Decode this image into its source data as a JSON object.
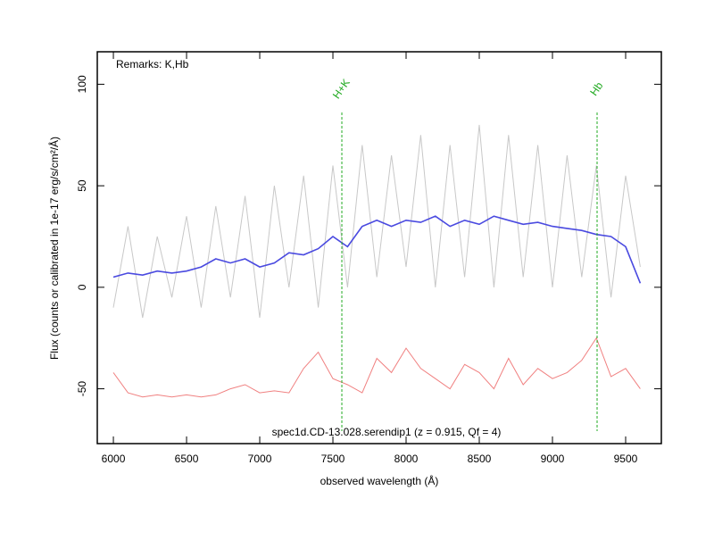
{
  "chart_data": {
    "type": "line",
    "remark": "Remarks: K,Hb",
    "caption": "spec1d.CD-13.028.serendip1 (z = 0.915, Qf = 4)",
    "x_label": "observed wavelength (Å)",
    "y_label": "Flux (counts or calibrated in 1e-17 erg/s/cm²/Å)",
    "xlim": [
      5890,
      9744
    ],
    "ylim": [
      -77,
      116
    ],
    "xticks": [
      6000,
      6500,
      7000,
      7500,
      8000,
      8500,
      9000,
      9500
    ],
    "yticks": [
      -50,
      0,
      50,
      100
    ],
    "x": [
      6000,
      6100,
      6200,
      6300,
      6400,
      6500,
      6600,
      6700,
      6800,
      6900,
      7000,
      7100,
      7200,
      7300,
      7400,
      7500,
      7600,
      7700,
      7800,
      7900,
      8000,
      8100,
      8200,
      8300,
      8400,
      8500,
      8600,
      8700,
      8800,
      8900,
      9000,
      9100,
      9200,
      9300,
      9400,
      9500,
      9600
    ],
    "series": [
      {
        "color": "#c8c8c8",
        "values": [
          -10,
          30,
          -15,
          25,
          -5,
          35,
          -10,
          40,
          -5,
          45,
          -15,
          50,
          0,
          55,
          -10,
          60,
          0,
          70,
          5,
          65,
          10,
          75,
          0,
          70,
          5,
          80,
          0,
          75,
          5,
          70,
          0,
          65,
          5,
          60,
          -5,
          55,
          10
        ]
      },
      {
        "color": "#f08080",
        "values": [
          -42,
          -52,
          -54,
          -53,
          -54,
          -53,
          -54,
          -53,
          -50,
          -48,
          -52,
          -51,
          -52,
          -40,
          -32,
          -45,
          -48,
          -52,
          -35,
          -42,
          -30,
          -40,
          -45,
          -50,
          -38,
          -42,
          -50,
          -35,
          -48,
          -40,
          -45,
          -42,
          -36,
          -25,
          -44,
          -40,
          -50
        ]
      },
      {
        "color": "#4a4ae0",
        "values": [
          5,
          7,
          6,
          8,
          7,
          8,
          10,
          14,
          12,
          14,
          10,
          12,
          17,
          16,
          19,
          25,
          20,
          30,
          33,
          30,
          33,
          32,
          35,
          30,
          33,
          31,
          35,
          33,
          31,
          32,
          30,
          29,
          28,
          26,
          25,
          20,
          2
        ]
      }
    ],
    "vlines": [
      {
        "label": "H+K",
        "x": 7561,
        "color": "#22aa22"
      },
      {
        "label": "Hb",
        "x": 9305,
        "color": "#22aa22"
      }
    ]
  }
}
